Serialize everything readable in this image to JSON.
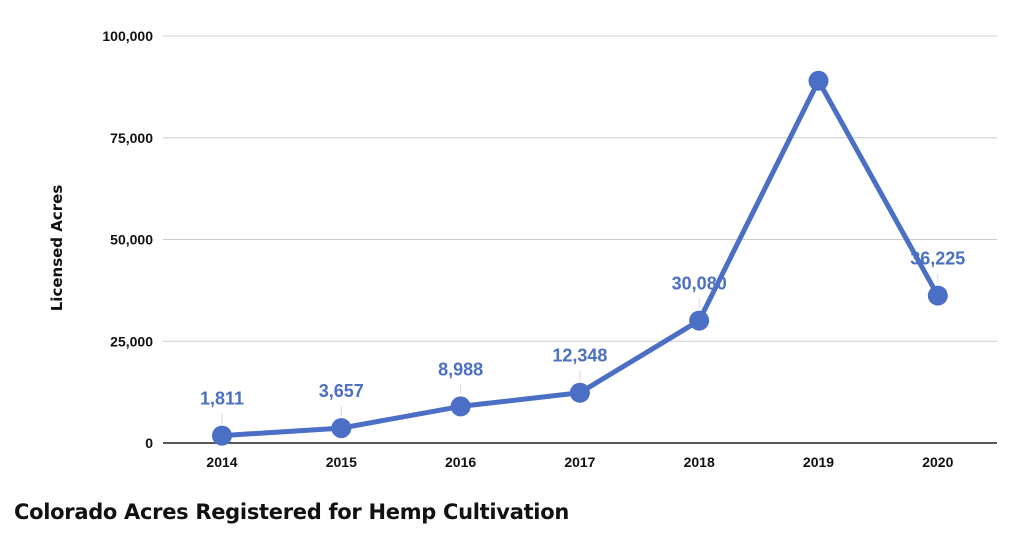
{
  "chart_data": {
    "type": "line",
    "title": "Colorado Acres Registered for Hemp Cultivation",
    "ylabel": "Licensed Acres",
    "xlabel": "",
    "categories": [
      "2014",
      "2015",
      "2016",
      "2017",
      "2018",
      "2019",
      "2020"
    ],
    "values": [
      1811,
      3657,
      8988,
      12348,
      30080,
      89000,
      36225
    ],
    "data_labels": [
      "1,811",
      "3,657",
      "8,988",
      "12,348",
      "30,080",
      "",
      "36,225"
    ],
    "ylim": [
      0,
      100000
    ],
    "yticks": [
      0,
      25000,
      50000,
      75000,
      100000
    ],
    "ytick_labels": [
      "0",
      "25,000",
      "50,000",
      "75,000",
      "100,000"
    ],
    "grid": true,
    "legend": "none",
    "colors": {
      "series": "#4a6fc4",
      "label": "#4a6fc4",
      "grid": "#cccccc",
      "axis": "#222222",
      "text": "#111111"
    }
  }
}
